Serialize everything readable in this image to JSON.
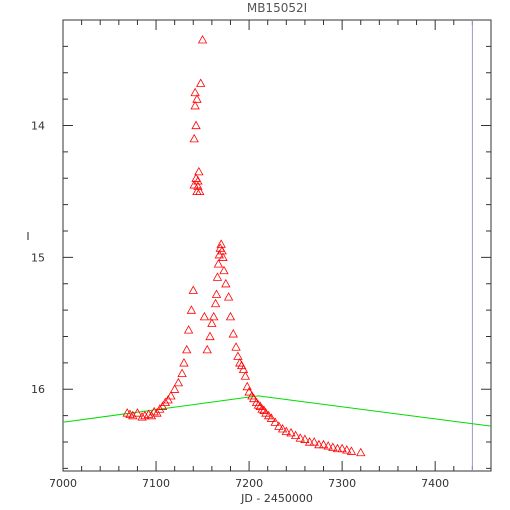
{
  "chart_data": {
    "type": "scatter",
    "title": "MB15052I",
    "xlabel": "JD - 2450000",
    "ylabel": "I",
    "xlim": [
      7000,
      7460
    ],
    "ylim": [
      16.62,
      13.2
    ],
    "y_inverted": true,
    "x_ticks": [
      7000,
      7100,
      7200,
      7300,
      7400
    ],
    "x_tick_labels": [
      "7000",
      "7100",
      "7200",
      "7300",
      "7400"
    ],
    "y_ticks": [
      14,
      15,
      16
    ],
    "y_tick_labels": [
      "14",
      "15",
      "16"
    ],
    "grid": false,
    "legend": "none",
    "colors": {
      "points": "#ff0000",
      "model_line": "#00dd00",
      "vertical_marker": "#9999cc",
      "axis": "#333333"
    },
    "series": [
      {
        "marker": "triangle-open",
        "x": [
          7069,
          7072,
          7075,
          7080,
          7085,
          7088,
          7092,
          7095,
          7098,
          7101,
          7104,
          7107,
          7110,
          7113,
          7116,
          7120,
          7124,
          7128,
          7130,
          7133,
          7135,
          7138,
          7140,
          7141,
          7141,
          7142,
          7142,
          7143,
          7143,
          7144,
          7144,
          7145,
          7145,
          7146,
          7147,
          7148,
          7150,
          7152,
          7155,
          7158,
          7160,
          7162,
          7164,
          7165,
          7166,
          7167,
          7168,
          7169,
          7170,
          7171,
          7172,
          7173,
          7175,
          7178,
          7180,
          7183,
          7186,
          7188,
          7190,
          7192,
          7194,
          7196,
          7198,
          7200,
          7203,
          7205,
          7208,
          7210,
          7212,
          7214,
          7216,
          7218,
          7221,
          7224,
          7228,
          7232,
          7236,
          7240,
          7245,
          7250,
          7255,
          7260,
          7265,
          7270,
          7275,
          7280,
          7285,
          7290,
          7295,
          7300,
          7305,
          7310,
          7320
        ],
        "y": [
          16.18,
          16.19,
          16.2,
          16.18,
          16.21,
          16.2,
          16.19,
          16.2,
          16.17,
          16.18,
          16.15,
          16.13,
          16.1,
          16.08,
          16.05,
          16.0,
          15.95,
          15.88,
          15.8,
          15.7,
          15.55,
          15.4,
          15.25,
          14.45,
          14.1,
          13.85,
          13.75,
          14.0,
          14.4,
          13.8,
          14.5,
          14.42,
          14.46,
          14.35,
          14.5,
          13.68,
          13.35,
          15.45,
          15.7,
          15.6,
          15.5,
          15.45,
          15.35,
          15.28,
          15.15,
          15.05,
          14.98,
          14.93,
          14.9,
          14.95,
          15.0,
          15.1,
          15.2,
          15.3,
          15.45,
          15.58,
          15.68,
          15.75,
          15.8,
          15.82,
          15.85,
          15.9,
          15.98,
          16.02,
          16.05,
          16.07,
          16.1,
          16.12,
          16.13,
          16.15,
          16.16,
          16.18,
          16.2,
          16.22,
          16.25,
          16.28,
          16.3,
          16.32,
          16.33,
          16.35,
          16.37,
          16.38,
          16.4,
          16.4,
          16.42,
          16.42,
          16.43,
          16.44,
          16.45,
          16.45,
          16.46,
          16.47,
          16.48
        ]
      },
      {
        "type": "line",
        "x": [
          7000,
          7210,
          7460
        ],
        "y": [
          16.25,
          16.05,
          16.28
        ]
      },
      {
        "type": "vline",
        "x": [
          7440
        ]
      }
    ]
  }
}
